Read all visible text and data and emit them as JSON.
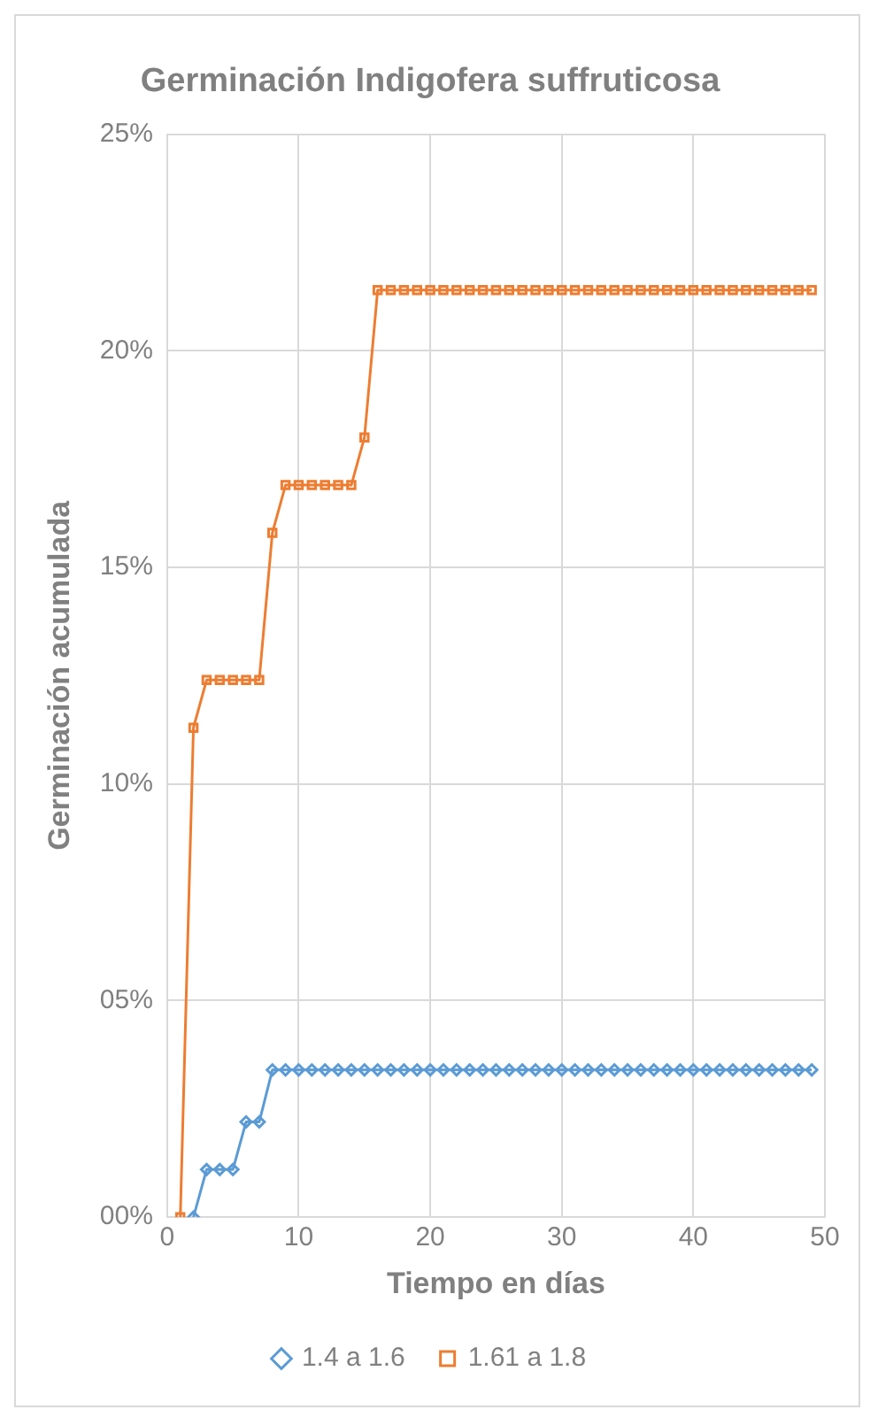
{
  "chart_data": {
    "type": "line",
    "title": "Germinación Indigofera suffruticosa",
    "xlabel": "Tiempo en días",
    "ylabel": "Germinación acumulada",
    "xlim": [
      0,
      50
    ],
    "xticks": [
      0,
      10,
      20,
      30,
      40,
      50
    ],
    "ylim": [
      0,
      25
    ],
    "yticks": [
      {
        "value": 0,
        "label": "00%"
      },
      {
        "value": 5,
        "label": "05%"
      },
      {
        "value": 10,
        "label": "10%"
      },
      {
        "value": 15,
        "label": "15%"
      },
      {
        "value": 20,
        "label": "20%"
      },
      {
        "value": 25,
        "label": "25%"
      }
    ],
    "grid": true,
    "legend": "bottom",
    "line_style": "solid",
    "series": [
      {
        "name": "1.4 a 1.6",
        "color": "#5b9bd5",
        "marker": "diamond",
        "x": [
          2,
          3,
          4,
          5,
          6,
          7,
          8,
          9,
          10,
          11,
          12,
          13,
          14,
          15,
          16,
          17,
          18,
          19,
          20,
          21,
          22,
          23,
          24,
          25,
          26,
          27,
          28,
          29,
          30,
          31,
          32,
          33,
          34,
          35,
          36,
          37,
          38,
          39,
          40,
          41,
          42,
          43,
          44,
          45,
          46,
          47,
          48,
          49
        ],
        "values": [
          0,
          1.1,
          1.1,
          1.1,
          2.2,
          2.2,
          3.4,
          3.4,
          3.4,
          3.4,
          3.4,
          3.4,
          3.4,
          3.4,
          3.4,
          3.4,
          3.4,
          3.4,
          3.4,
          3.4,
          3.4,
          3.4,
          3.4,
          3.4,
          3.4,
          3.4,
          3.4,
          3.4,
          3.4,
          3.4,
          3.4,
          3.4,
          3.4,
          3.4,
          3.4,
          3.4,
          3.4,
          3.4,
          3.4,
          3.4,
          3.4,
          3.4,
          3.4,
          3.4,
          3.4,
          3.4,
          3.4,
          3.4
        ]
      },
      {
        "name": "1.61 a 1.8",
        "color": "#ed7d31",
        "marker": "square",
        "x": [
          1,
          2,
          3,
          4,
          5,
          6,
          7,
          8,
          9,
          10,
          11,
          12,
          13,
          14,
          15,
          16,
          17,
          18,
          19,
          20,
          21,
          22,
          23,
          24,
          25,
          26,
          27,
          28,
          29,
          30,
          31,
          32,
          33,
          34,
          35,
          36,
          37,
          38,
          39,
          40,
          41,
          42,
          43,
          44,
          45,
          46,
          47,
          48,
          49
        ],
        "values": [
          0,
          11.3,
          12.4,
          12.4,
          12.4,
          12.4,
          12.4,
          15.8,
          16.9,
          16.9,
          16.9,
          16.9,
          16.9,
          16.9,
          18,
          21.4,
          21.4,
          21.4,
          21.4,
          21.4,
          21.4,
          21.4,
          21.4,
          21.4,
          21.4,
          21.4,
          21.4,
          21.4,
          21.4,
          21.4,
          21.4,
          21.4,
          21.4,
          21.4,
          21.4,
          21.4,
          21.4,
          21.4,
          21.4,
          21.4,
          21.4,
          21.4,
          21.4,
          21.4,
          21.4,
          21.4,
          21.4,
          21.4,
          21.4
        ]
      }
    ]
  }
}
